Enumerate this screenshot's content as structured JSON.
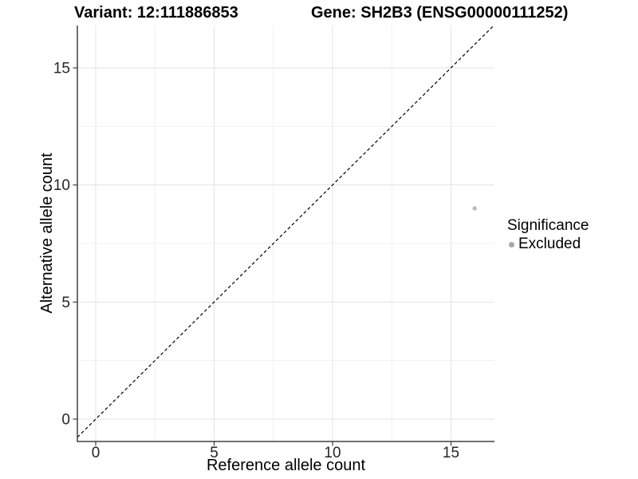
{
  "titles": {
    "variant": "Variant: 12:111886853",
    "gene": "Gene: SH2B3 (ENSG00000111252)"
  },
  "axes": {
    "x": {
      "label": "Reference allele count"
    },
    "y": {
      "label": "Alternative allele count"
    }
  },
  "legend": {
    "title": "Significance",
    "items": [
      {
        "label": "Excluded",
        "color": "#a8a8a8",
        "shape": "circle"
      }
    ]
  },
  "chart_data": {
    "type": "scatter",
    "title": "Variant: 12:111886853 | Gene: SH2B3 (ENSG00000111252)",
    "xlabel": "Reference allele count",
    "ylabel": "Alternative allele count",
    "xlim": [
      -0.8,
      16.85
    ],
    "ylim": [
      -0.95,
      16.8
    ],
    "x_major_ticks": [
      0,
      5,
      10,
      15
    ],
    "x_minor_ticks": [
      2.5,
      7.5,
      12.5
    ],
    "y_major_ticks": [
      0,
      5,
      10,
      15
    ],
    "y_minor_ticks": [
      2.5,
      7.5,
      12.5
    ],
    "grid": "major+minor",
    "legend_position": "right",
    "reference_line": {
      "style": "dashed",
      "color": "#000000",
      "equation": "y = x"
    },
    "series": [
      {
        "name": "Excluded",
        "color": "#b9b9b9",
        "points": [
          {
            "x": 16,
            "y": 9
          }
        ]
      }
    ],
    "colors": {
      "grid_major": "#e3e3e3",
      "grid_minor": "#f1f1f1",
      "axis_line": "#404040",
      "tick_text": "#262626"
    }
  }
}
